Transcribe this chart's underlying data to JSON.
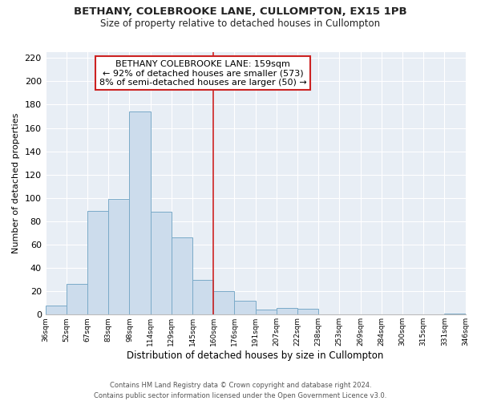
{
  "title": "BETHANY, COLEBROOKE LANE, CULLOMPTON, EX15 1PB",
  "subtitle": "Size of property relative to detached houses in Cullompton",
  "xlabel": "Distribution of detached houses by size in Cullompton",
  "ylabel": "Number of detached properties",
  "bin_labels": [
    "36sqm",
    "52sqm",
    "67sqm",
    "83sqm",
    "98sqm",
    "114sqm",
    "129sqm",
    "145sqm",
    "160sqm",
    "176sqm",
    "191sqm",
    "207sqm",
    "222sqm",
    "238sqm",
    "253sqm",
    "269sqm",
    "284sqm",
    "300sqm",
    "315sqm",
    "331sqm",
    "346sqm"
  ],
  "bar_heights": [
    8,
    26,
    89,
    99,
    174,
    88,
    66,
    30,
    20,
    12,
    4,
    6,
    5,
    0,
    0,
    0,
    0,
    0,
    0,
    1
  ],
  "bar_color": "#ccdcec",
  "bar_edgecolor": "#7aaac8",
  "vline_x": 8,
  "vline_color": "#cc2222",
  "annotation_title": "BETHANY COLEBROOKE LANE: 159sqm",
  "annotation_line1": "← 92% of detached houses are smaller (573)",
  "annotation_line2": "8% of semi-detached houses are larger (50) →",
  "annotation_box_facecolor": "#ffffff",
  "annotation_box_edgecolor": "#cc2222",
  "yticks": [
    0,
    20,
    40,
    60,
    80,
    100,
    120,
    140,
    160,
    180,
    200,
    220
  ],
  "ylim": [
    0,
    225
  ],
  "footer1": "Contains HM Land Registry data © Crown copyright and database right 2024.",
  "footer2": "Contains public sector information licensed under the Open Government Licence v3.0.",
  "background_color": "#ffffff",
  "plot_bg_color": "#e8eef5",
  "grid_color": "#ffffff"
}
